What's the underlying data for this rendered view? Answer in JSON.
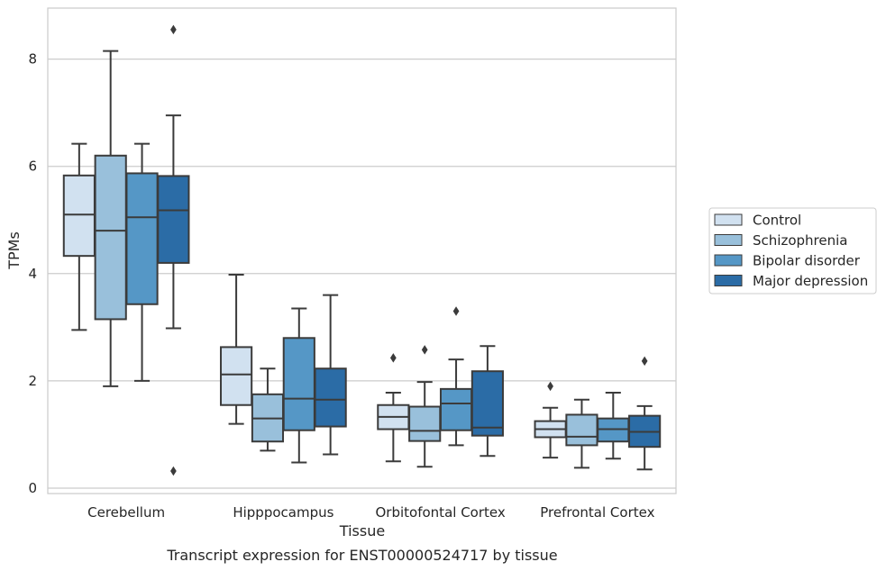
{
  "chart_data": {
    "type": "boxplot",
    "title": "",
    "caption": "Transcript expression for ENST00000524717 by tissue",
    "xlabel": "Tissue",
    "ylabel": "TPMs",
    "ylim": [
      -0.1,
      8.95
    ],
    "yticks": [
      0,
      2,
      4,
      6,
      8
    ],
    "grid": "horizontal",
    "legend_position": "right",
    "categories": [
      "Cerebellum",
      "Hipppocampus",
      "Orbitofontal Cortex",
      "Prefrontal Cortex"
    ],
    "series": [
      {
        "name": "Control",
        "color": "#d1e1f0",
        "boxes": [
          {
            "whislo": 2.95,
            "q1": 4.33,
            "med": 5.1,
            "q3": 5.83,
            "whishi": 6.42,
            "fliers": []
          },
          {
            "whislo": 1.2,
            "q1": 1.55,
            "med": 2.12,
            "q3": 2.63,
            "whishi": 3.98,
            "fliers": []
          },
          {
            "whislo": 0.5,
            "q1": 1.1,
            "med": 1.33,
            "q3": 1.55,
            "whishi": 1.78,
            "fliers": [
              2.43
            ]
          },
          {
            "whislo": 0.57,
            "q1": 0.95,
            "med": 1.1,
            "q3": 1.25,
            "whishi": 1.5,
            "fliers": [
              1.9
            ]
          }
        ]
      },
      {
        "name": "Schizophrenia",
        "color": "#99c0db",
        "boxes": [
          {
            "whislo": 1.9,
            "q1": 3.15,
            "med": 4.8,
            "q3": 6.2,
            "whishi": 8.15,
            "fliers": []
          },
          {
            "whislo": 0.7,
            "q1": 0.87,
            "med": 1.3,
            "q3": 1.75,
            "whishi": 2.23,
            "fliers": []
          },
          {
            "whislo": 0.4,
            "q1": 0.88,
            "med": 1.07,
            "q3": 1.52,
            "whishi": 1.98,
            "fliers": [
              2.58
            ]
          },
          {
            "whislo": 0.38,
            "q1": 0.8,
            "med": 0.96,
            "q3": 1.37,
            "whishi": 1.65,
            "fliers": []
          }
        ]
      },
      {
        "name": "Bipolar disorder",
        "color": "#5597c6",
        "boxes": [
          {
            "whislo": 2.0,
            "q1": 3.43,
            "med": 5.05,
            "q3": 5.87,
            "whishi": 6.42,
            "fliers": []
          },
          {
            "whislo": 0.48,
            "q1": 1.08,
            "med": 1.67,
            "q3": 2.8,
            "whishi": 3.35,
            "fliers": []
          },
          {
            "whislo": 0.8,
            "q1": 1.08,
            "med": 1.58,
            "q3": 1.85,
            "whishi": 2.4,
            "fliers": [
              3.3
            ]
          },
          {
            "whislo": 0.55,
            "q1": 0.87,
            "med": 1.1,
            "q3": 1.3,
            "whishi": 1.78,
            "fliers": []
          }
        ]
      },
      {
        "name": "Major depression",
        "color": "#2b6ca6",
        "boxes": [
          {
            "whislo": 2.98,
            "q1": 4.2,
            "med": 5.18,
            "q3": 5.82,
            "whishi": 6.95,
            "fliers": [
              8.55,
              0.32
            ]
          },
          {
            "whislo": 0.63,
            "q1": 1.15,
            "med": 1.65,
            "q3": 2.23,
            "whishi": 3.6,
            "fliers": []
          },
          {
            "whislo": 0.6,
            "q1": 0.98,
            "med": 1.13,
            "q3": 2.18,
            "whishi": 2.65,
            "fliers": []
          },
          {
            "whislo": 0.35,
            "q1": 0.77,
            "med": 1.05,
            "q3": 1.35,
            "whishi": 1.53,
            "fliers": [
              2.37
            ]
          }
        ]
      }
    ]
  }
}
